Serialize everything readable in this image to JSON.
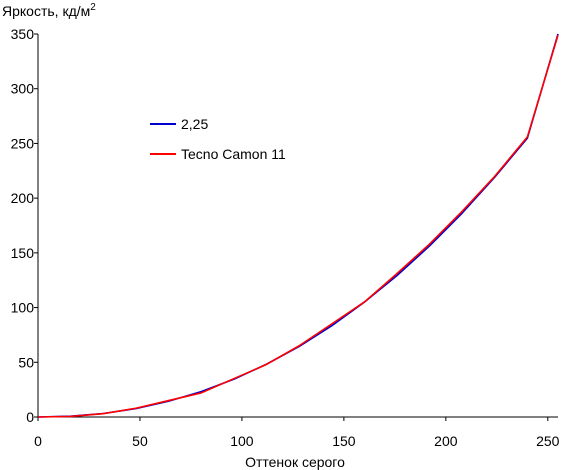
{
  "chart_data": {
    "type": "line",
    "title": "",
    "ylabel": "Яркость, кд/м",
    "ylabel_sup": "2",
    "xlabel": "Оттенок серого",
    "xlim": [
      0,
      255
    ],
    "ylim": [
      0,
      350
    ],
    "x_ticks": [
      0,
      50,
      100,
      150,
      200,
      250
    ],
    "y_ticks": [
      0,
      50,
      100,
      150,
      200,
      250,
      300,
      350
    ],
    "grid": false,
    "legend_position": "upper-left-inside",
    "series": [
      {
        "name": "2,25",
        "color": "#0000cc",
        "x": [
          0,
          16,
          32,
          48,
          64,
          80,
          96,
          112,
          128,
          144,
          160,
          176,
          192,
          208,
          224,
          240,
          255
        ],
        "y": [
          0,
          0.7,
          3.2,
          7.7,
          14.4,
          23.2,
          34.5,
          48.2,
          64.4,
          83.3,
          104.9,
          129.2,
          156.3,
          186.3,
          219.2,
          254.9,
          350
        ]
      },
      {
        "name": "Tecno Camon 11",
        "color": "#ff0000",
        "x": [
          0,
          16,
          32,
          48,
          64,
          80,
          96,
          112,
          128,
          144,
          160,
          176,
          192,
          208,
          224,
          240,
          255
        ],
        "y": [
          0,
          0.5,
          3.0,
          8.0,
          15.0,
          22.0,
          35.0,
          48.0,
          65.0,
          85.0,
          105.0,
          131.0,
          158.0,
          188.0,
          220.0,
          256.0,
          349.0
        ]
      }
    ]
  }
}
